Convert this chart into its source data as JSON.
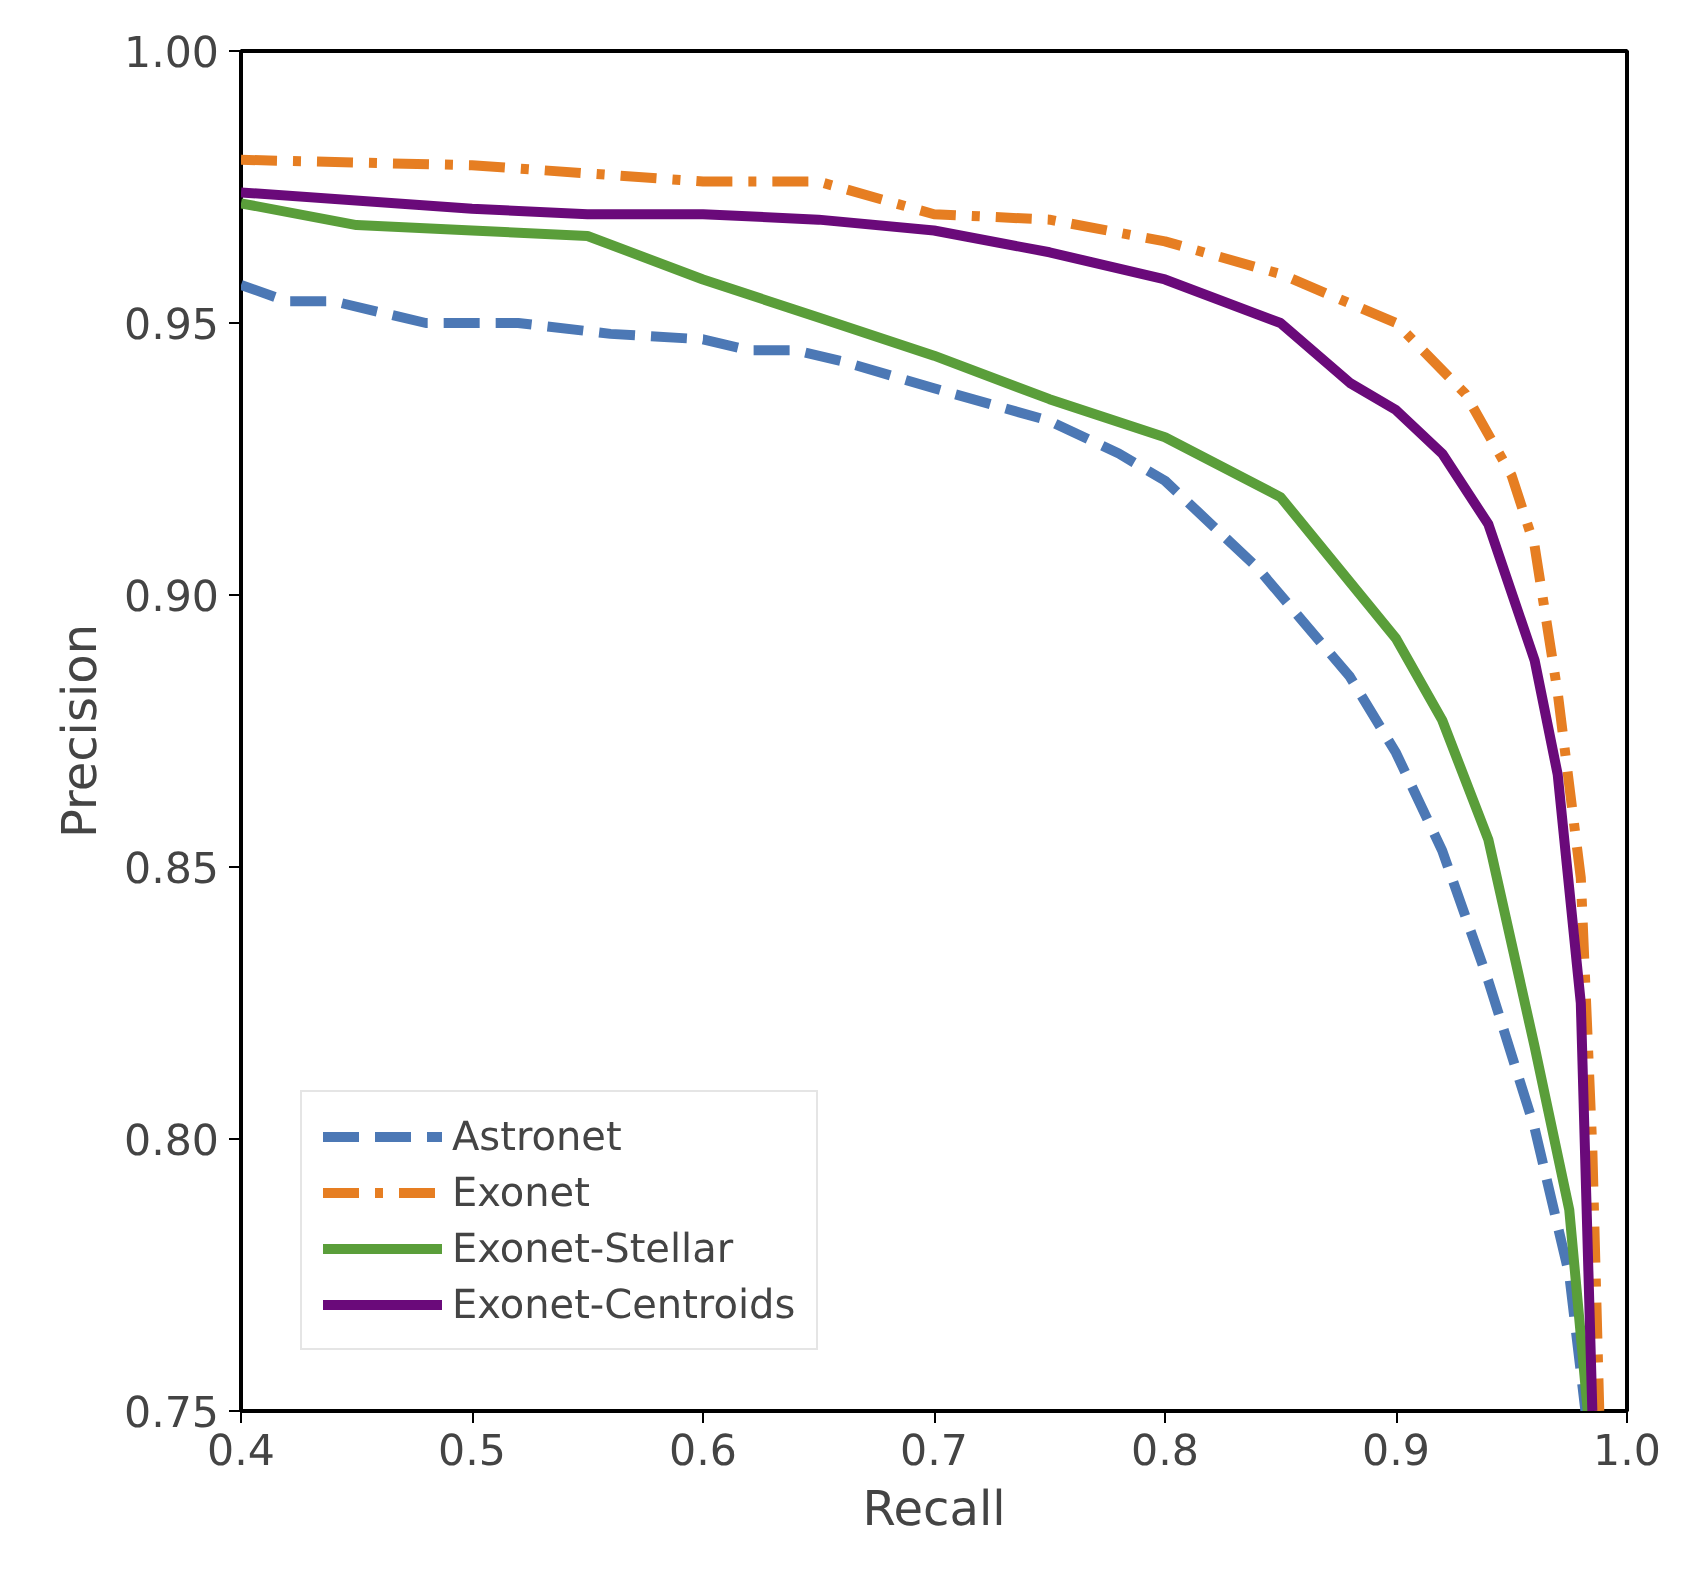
{
  "chart_data": {
    "type": "line",
    "xlabel": "Recall",
    "ylabel": "Precision",
    "xlim": [
      0.4,
      1.0
    ],
    "ylim": [
      0.75,
      1.0
    ],
    "xticks": [
      0.4,
      0.5,
      0.6,
      0.7,
      0.8,
      0.9,
      {
        "value": 1.0,
        "label": "1.0"
      }
    ],
    "yticks": [
      0.75,
      {
        "value": 0.8,
        "label": "0.80"
      },
      0.85,
      {
        "value": 0.9,
        "label": "0.90"
      },
      0.95,
      {
        "value": 1.0,
        "label": "1.00"
      }
    ],
    "grid": false,
    "legend": "bottom left",
    "series": [
      {
        "name": "Astronet",
        "color": "#4c78b5",
        "line_style": "dashed",
        "x": [
          0.4,
          0.42,
          0.44,
          0.48,
          0.52,
          0.56,
          0.6,
          0.62,
          0.64,
          0.66,
          0.7,
          0.75,
          0.78,
          0.8,
          0.82,
          0.84,
          0.86,
          0.88,
          0.9,
          0.92,
          0.94,
          0.96,
          0.975,
          0.982
        ],
        "values": [
          0.957,
          0.954,
          0.954,
          0.95,
          0.95,
          0.948,
          0.947,
          0.945,
          0.945,
          0.943,
          0.938,
          0.932,
          0.926,
          0.921,
          0.913,
          0.905,
          0.895,
          0.885,
          0.871,
          0.853,
          0.829,
          0.802,
          0.775,
          0.75
        ]
      },
      {
        "name": "Exonet",
        "color": "#e67e22",
        "line_style": "dashdot",
        "x": [
          0.4,
          0.5,
          0.6,
          0.65,
          0.7,
          0.75,
          0.8,
          0.85,
          0.9,
          0.93,
          0.95,
          0.96,
          0.97,
          0.98,
          0.985,
          0.988
        ],
        "values": [
          0.98,
          0.979,
          0.976,
          0.976,
          0.97,
          0.969,
          0.965,
          0.959,
          0.95,
          0.937,
          0.922,
          0.909,
          0.882,
          0.848,
          0.798,
          0.75
        ]
      },
      {
        "name": "Exonet-Stellar",
        "color": "#5a9e3a",
        "line_style": "solid",
        "x": [
          0.4,
          0.45,
          0.5,
          0.55,
          0.6,
          0.65,
          0.7,
          0.75,
          0.8,
          0.85,
          0.9,
          0.92,
          0.94,
          0.96,
          0.975,
          0.983
        ],
        "values": [
          0.972,
          0.968,
          0.967,
          0.966,
          0.958,
          0.951,
          0.944,
          0.936,
          0.929,
          0.918,
          0.892,
          0.877,
          0.855,
          0.817,
          0.787,
          0.75
        ]
      },
      {
        "name": "Exonet-Centroids",
        "color": "#6a0a7a",
        "line_style": "solid",
        "x": [
          0.4,
          0.5,
          0.55,
          0.6,
          0.65,
          0.7,
          0.75,
          0.8,
          0.85,
          0.88,
          0.9,
          0.92,
          0.94,
          0.96,
          0.97,
          0.98,
          0.985
        ],
        "values": [
          0.974,
          0.971,
          0.97,
          0.97,
          0.969,
          0.967,
          0.963,
          0.958,
          0.95,
          0.939,
          0.934,
          0.926,
          0.913,
          0.888,
          0.867,
          0.825,
          0.75
        ]
      }
    ]
  }
}
